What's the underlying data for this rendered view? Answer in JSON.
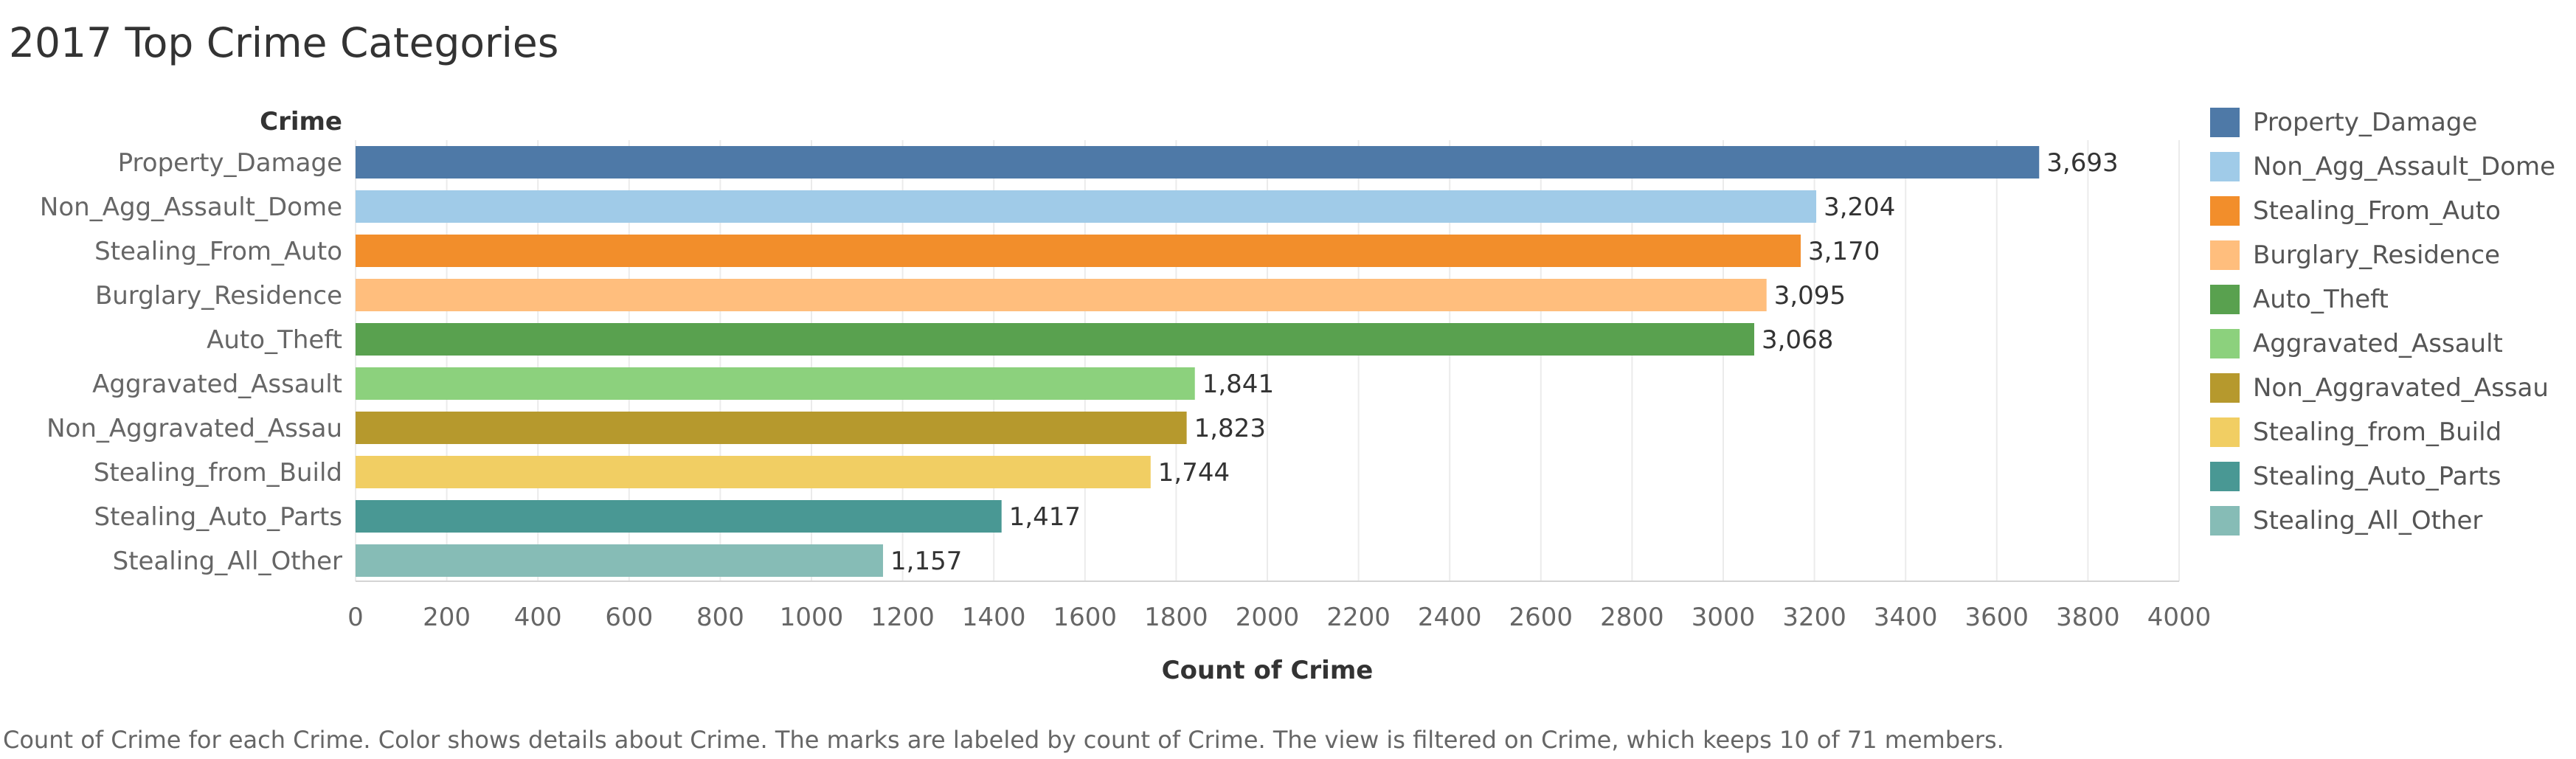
{
  "title": "2017 Top Crime Categories",
  "caption": "Count of Crime for each Crime.  Color shows details about Crime.  The marks are labeled by count of Crime. The view is filtered on Crime, which keeps 10 of 71 members.",
  "chart_data": {
    "type": "bar",
    "orientation": "horizontal",
    "row_header": "Crime",
    "xlabel": "Count of Crime",
    "ylabel": "Crime",
    "xlim": [
      0,
      4000
    ],
    "x_ticks": [
      0,
      200,
      400,
      600,
      800,
      1000,
      1200,
      1400,
      1600,
      1800,
      2000,
      2200,
      2400,
      2600,
      2800,
      3000,
      3200,
      3400,
      3600,
      3800,
      4000
    ],
    "grid": "vertical",
    "legend_position": "right",
    "categories": [
      "Property_Damage",
      "Non_Agg_Assault_Dome",
      "Stealing_From_Auto",
      "Burglary_Residence",
      "Auto_Theft",
      "Aggravated_Assault",
      "Non_Aggravated_Assau",
      "Stealing_from_Build",
      "Stealing_Auto_Parts",
      "Stealing_All_Other"
    ],
    "values": [
      3693,
      3204,
      3170,
      3095,
      3068,
      1841,
      1823,
      1744,
      1417,
      1157
    ],
    "value_labels": [
      "3,693",
      "3,204",
      "3,170",
      "3,095",
      "3,068",
      "1,841",
      "1,823",
      "1,744",
      "1,417",
      "1,157"
    ],
    "colors": [
      "#4e79a7",
      "#a0cbe8",
      "#f28e2b",
      "#ffbe7d",
      "#59a14f",
      "#8cd17d",
      "#b6992d",
      "#f1ce63",
      "#499894",
      "#86bcb6"
    ]
  },
  "legend": {
    "items": [
      {
        "label": "Property_Damage",
        "color": "#4e79a7"
      },
      {
        "label": "Non_Agg_Assault_Dome",
        "color": "#a0cbe8"
      },
      {
        "label": "Stealing_From_Auto",
        "color": "#f28e2b"
      },
      {
        "label": "Burglary_Residence",
        "color": "#ffbe7d"
      },
      {
        "label": "Auto_Theft",
        "color": "#59a14f"
      },
      {
        "label": "Aggravated_Assault",
        "color": "#8cd17d"
      },
      {
        "label": "Non_Aggravated_Assau",
        "color": "#b6992d"
      },
      {
        "label": "Stealing_from_Build",
        "color": "#f1ce63"
      },
      {
        "label": "Stealing_Auto_Parts",
        "color": "#499894"
      },
      {
        "label": "Stealing_All_Other",
        "color": "#86bcb6"
      }
    ]
  }
}
